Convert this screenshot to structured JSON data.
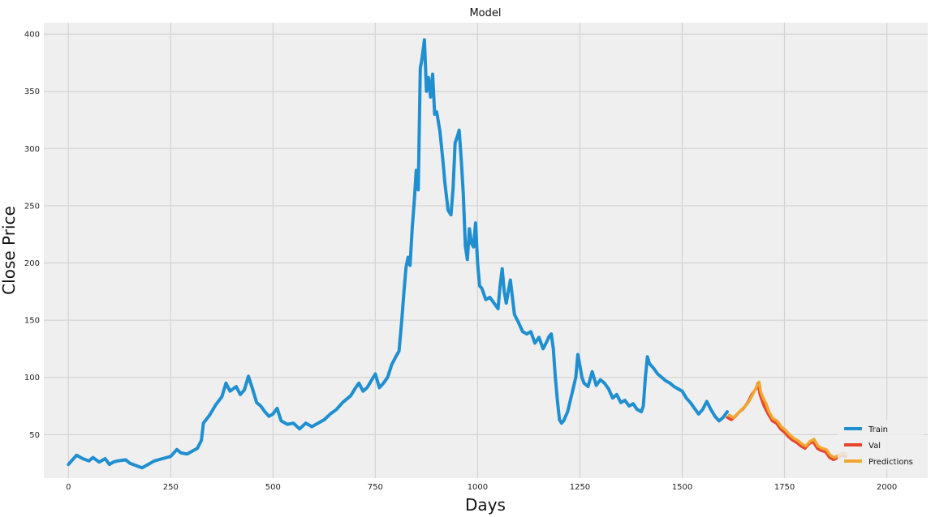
{
  "chart_data": {
    "type": "line",
    "title": "Model",
    "xlabel": "Days",
    "ylabel": "Close Price",
    "xlim": [
      -60,
      2100
    ],
    "ylim": [
      12,
      410
    ],
    "xticks": [
      0,
      250,
      500,
      750,
      1000,
      1250,
      1500,
      1750,
      2000
    ],
    "yticks": [
      50,
      100,
      150,
      200,
      250,
      300,
      350,
      400
    ],
    "grid": true,
    "legend_position": "bottom-right",
    "colors": {
      "Train": "#1f8fd0",
      "Val": "#e8452c",
      "Predictions": "#f0a830"
    },
    "series": [
      {
        "name": "Train",
        "points": [
          [
            0,
            24
          ],
          [
            10,
            28
          ],
          [
            20,
            32
          ],
          [
            35,
            29
          ],
          [
            50,
            27
          ],
          [
            60,
            30
          ],
          [
            75,
            26
          ],
          [
            90,
            29
          ],
          [
            100,
            24
          ],
          [
            110,
            26
          ],
          [
            120,
            27
          ],
          [
            140,
            28
          ],
          [
            150,
            25
          ],
          [
            165,
            23
          ],
          [
            180,
            21
          ],
          [
            195,
            24
          ],
          [
            210,
            27
          ],
          [
            230,
            29
          ],
          [
            250,
            31
          ],
          [
            265,
            37
          ],
          [
            275,
            34
          ],
          [
            290,
            33
          ],
          [
            300,
            35
          ],
          [
            315,
            38
          ],
          [
            325,
            45
          ],
          [
            330,
            60
          ],
          [
            345,
            67
          ],
          [
            360,
            76
          ],
          [
            375,
            83
          ],
          [
            385,
            95
          ],
          [
            395,
            88
          ],
          [
            410,
            92
          ],
          [
            420,
            85
          ],
          [
            430,
            89
          ],
          [
            440,
            101
          ],
          [
            450,
            90
          ],
          [
            460,
            78
          ],
          [
            470,
            75
          ],
          [
            480,
            70
          ],
          [
            490,
            66
          ],
          [
            500,
            68
          ],
          [
            510,
            73
          ],
          [
            520,
            62
          ],
          [
            535,
            59
          ],
          [
            550,
            60
          ],
          [
            565,
            55
          ],
          [
            580,
            60
          ],
          [
            595,
            57
          ],
          [
            610,
            60
          ],
          [
            625,
            63
          ],
          [
            640,
            68
          ],
          [
            655,
            72
          ],
          [
            670,
            78
          ],
          [
            690,
            84
          ],
          [
            700,
            90
          ],
          [
            710,
            95
          ],
          [
            720,
            88
          ],
          [
            730,
            91
          ],
          [
            740,
            97
          ],
          [
            750,
            103
          ],
          [
            760,
            91
          ],
          [
            770,
            95
          ],
          [
            780,
            100
          ],
          [
            790,
            111
          ],
          [
            800,
            118
          ],
          [
            808,
            123
          ],
          [
            815,
            151
          ],
          [
            820,
            175
          ],
          [
            825,
            196
          ],
          [
            830,
            205
          ],
          [
            835,
            198
          ],
          [
            840,
            230
          ],
          [
            845,
            253
          ],
          [
            850,
            281
          ],
          [
            855,
            264
          ],
          [
            860,
            370
          ],
          [
            864,
            378
          ],
          [
            870,
            395
          ],
          [
            875,
            350
          ],
          [
            880,
            362
          ],
          [
            885,
            345
          ],
          [
            890,
            365
          ],
          [
            895,
            330
          ],
          [
            900,
            332
          ],
          [
            908,
            315
          ],
          [
            915,
            290
          ],
          [
            920,
            270
          ],
          [
            928,
            246
          ],
          [
            935,
            242
          ],
          [
            940,
            265
          ],
          [
            945,
            305
          ],
          [
            950,
            310
          ],
          [
            955,
            316
          ],
          [
            960,
            290
          ],
          [
            965,
            260
          ],
          [
            970,
            215
          ],
          [
            975,
            203
          ],
          [
            980,
            230
          ],
          [
            985,
            217
          ],
          [
            990,
            214
          ],
          [
            995,
            235
          ],
          [
            1000,
            200
          ],
          [
            1005,
            180
          ],
          [
            1010,
            178
          ],
          [
            1020,
            168
          ],
          [
            1030,
            170
          ],
          [
            1040,
            165
          ],
          [
            1050,
            160
          ],
          [
            1055,
            180
          ],
          [
            1060,
            195
          ],
          [
            1065,
            175
          ],
          [
            1070,
            165
          ],
          [
            1075,
            175
          ],
          [
            1080,
            185
          ],
          [
            1085,
            170
          ],
          [
            1090,
            155
          ],
          [
            1100,
            148
          ],
          [
            1110,
            140
          ],
          [
            1120,
            138
          ],
          [
            1130,
            140
          ],
          [
            1140,
            130
          ],
          [
            1150,
            135
          ],
          [
            1160,
            125
          ],
          [
            1170,
            132
          ],
          [
            1175,
            136
          ],
          [
            1180,
            138
          ],
          [
            1185,
            125
          ],
          [
            1190,
            100
          ],
          [
            1195,
            80
          ],
          [
            1200,
            63
          ],
          [
            1205,
            60
          ],
          [
            1210,
            62
          ],
          [
            1220,
            70
          ],
          [
            1230,
            85
          ],
          [
            1240,
            100
          ],
          [
            1245,
            120
          ],
          [
            1250,
            110
          ],
          [
            1255,
            100
          ],
          [
            1260,
            95
          ],
          [
            1270,
            92
          ],
          [
            1280,
            105
          ],
          [
            1290,
            93
          ],
          [
            1300,
            98
          ],
          [
            1310,
            95
          ],
          [
            1320,
            90
          ],
          [
            1330,
            82
          ],
          [
            1340,
            85
          ],
          [
            1350,
            78
          ],
          [
            1360,
            80
          ],
          [
            1370,
            75
          ],
          [
            1380,
            77
          ],
          [
            1390,
            72
          ],
          [
            1400,
            70
          ],
          [
            1405,
            75
          ],
          [
            1410,
            100
          ],
          [
            1415,
            118
          ],
          [
            1420,
            112
          ],
          [
            1430,
            108
          ],
          [
            1440,
            103
          ],
          [
            1450,
            100
          ],
          [
            1460,
            97
          ],
          [
            1470,
            95
          ],
          [
            1480,
            92
          ],
          [
            1490,
            90
          ],
          [
            1500,
            88
          ],
          [
            1510,
            82
          ],
          [
            1520,
            78
          ],
          [
            1530,
            73
          ],
          [
            1540,
            68
          ],
          [
            1550,
            72
          ],
          [
            1560,
            79
          ],
          [
            1570,
            72
          ],
          [
            1580,
            66
          ],
          [
            1590,
            62
          ],
          [
            1600,
            65
          ],
          [
            1610,
            70
          ]
        ]
      },
      {
        "name": "Val",
        "points": [
          [
            1610,
            65
          ],
          [
            1620,
            63
          ],
          [
            1630,
            66
          ],
          [
            1640,
            70
          ],
          [
            1650,
            73
          ],
          [
            1660,
            78
          ],
          [
            1670,
            85
          ],
          [
            1680,
            90
          ],
          [
            1685,
            95
          ],
          [
            1690,
            85
          ],
          [
            1695,
            80
          ],
          [
            1700,
            75
          ],
          [
            1710,
            68
          ],
          [
            1720,
            62
          ],
          [
            1730,
            60
          ],
          [
            1740,
            55
          ],
          [
            1750,
            52
          ],
          [
            1760,
            48
          ],
          [
            1770,
            45
          ],
          [
            1780,
            43
          ],
          [
            1790,
            40
          ],
          [
            1800,
            38
          ],
          [
            1810,
            42
          ],
          [
            1820,
            44
          ],
          [
            1830,
            38
          ],
          [
            1840,
            36
          ],
          [
            1850,
            35
          ],
          [
            1860,
            30
          ],
          [
            1870,
            28
          ],
          [
            1880,
            30
          ],
          [
            1890,
            32
          ],
          [
            1900,
            31
          ]
        ]
      },
      {
        "name": "Predictions",
        "points": [
          [
            1615,
            67
          ],
          [
            1625,
            65
          ],
          [
            1635,
            68
          ],
          [
            1645,
            72
          ],
          [
            1655,
            75
          ],
          [
            1665,
            80
          ],
          [
            1675,
            87
          ],
          [
            1682,
            92
          ],
          [
            1688,
            96
          ],
          [
            1692,
            87
          ],
          [
            1698,
            82
          ],
          [
            1705,
            77
          ],
          [
            1712,
            70
          ],
          [
            1722,
            64
          ],
          [
            1732,
            62
          ],
          [
            1742,
            57
          ],
          [
            1752,
            54
          ],
          [
            1762,
            50
          ],
          [
            1772,
            47
          ],
          [
            1782,
            45
          ],
          [
            1792,
            42
          ],
          [
            1802,
            40
          ],
          [
            1812,
            44
          ],
          [
            1822,
            46
          ],
          [
            1832,
            40
          ],
          [
            1842,
            38
          ],
          [
            1852,
            37
          ],
          [
            1862,
            32
          ],
          [
            1872,
            30
          ],
          [
            1882,
            32
          ],
          [
            1892,
            34
          ],
          [
            1900,
            33
          ]
        ]
      }
    ]
  }
}
